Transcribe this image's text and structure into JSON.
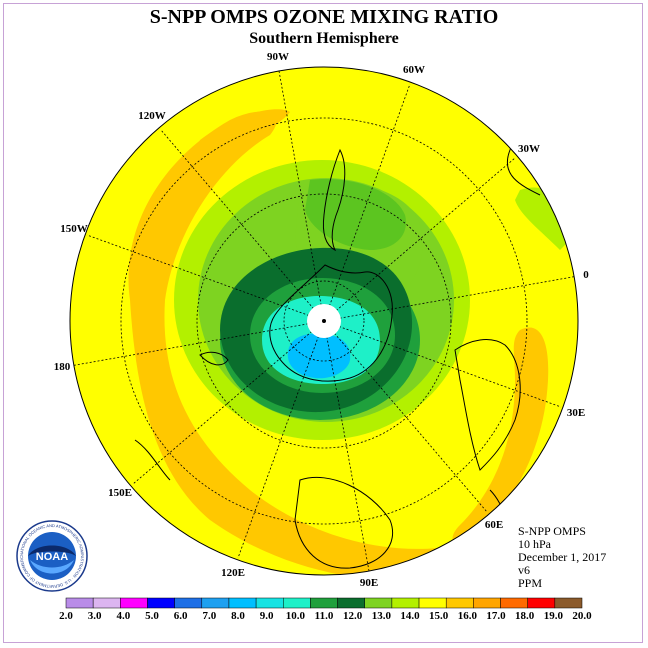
{
  "title": "S-NPP OMPS OZONE MIXING RATIO",
  "subtitle": "Southern Hemisphere",
  "info": {
    "line1": "S-NPP OMPS",
    "line2": "10 hPa",
    "line3": "December 1, 2017",
    "line4": "v6",
    "line5": "PPM"
  },
  "longitude_labels": [
    "90W",
    "60W",
    "30W",
    "0",
    "30E",
    "60E",
    "90E",
    "120E",
    "150E",
    "180",
    "150W",
    "120W"
  ],
  "logo": {
    "text": "NOAA",
    "ring_text": "NATIONAL OCEANIC AND ATMOSPHERIC ADMINISTRATION · U.S. DEPARTMENT OF COMMERCE"
  },
  "colorbar": {
    "labels": [
      "2.0",
      "3.0",
      "4.0",
      "5.0",
      "6.0",
      "7.0",
      "8.0",
      "9.0",
      "10.0",
      "11.0",
      "12.0",
      "13.0",
      "14.0",
      "15.0",
      "16.0",
      "17.0",
      "18.0",
      "19.0",
      "20.0"
    ],
    "colors": [
      "#b98ce8",
      "#dcb5f0",
      "#ff00ff",
      "#0000ff",
      "#1e6fe6",
      "#1ea0f0",
      "#00bfff",
      "#17e3e3",
      "#1ef0c8",
      "#1fa03c",
      "#0a6e2d",
      "#7ed321",
      "#b3f000",
      "#ffff00",
      "#ffc800",
      "#ffa500",
      "#ff6a00",
      "#ff0000",
      "#8b5a2b"
    ]
  },
  "colors": {
    "frame": "#c7a2d6",
    "grid": "#000000"
  }
}
